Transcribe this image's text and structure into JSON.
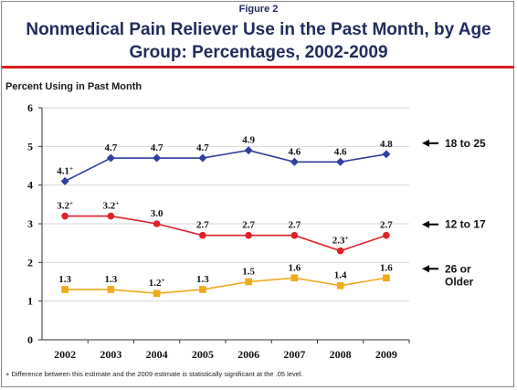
{
  "figure_label": "Figure 2",
  "title": "Nonmedical Pain Reliever Use in the Past Month, by Age Group: Percentages, 2002-2009",
  "footnote": "+ Difference between this estimate and the 2009 estimate is statistically significant at the .05 level.",
  "chart_data": {
    "type": "line",
    "x": [
      "2002",
      "2003",
      "2004",
      "2005",
      "2006",
      "2007",
      "2008",
      "2009"
    ],
    "ylabel": "Percent Using in Past Month",
    "ylim": [
      0,
      6
    ],
    "yticks": [
      "0",
      "1",
      "2",
      "3",
      "4",
      "5",
      "6"
    ],
    "grid": "horizontal",
    "legend": "right-end labels with arrows",
    "series": [
      {
        "name": "18 to 25",
        "legend_lines": [
          "18 to 25"
        ],
        "color": "#2e3f9e",
        "marker": "diamond",
        "values": [
          4.1,
          4.7,
          4.7,
          4.7,
          4.9,
          4.6,
          4.6,
          4.8
        ],
        "labels": [
          "4.1+",
          "4.7",
          "4.7",
          "4.7",
          "4.9",
          "4.6",
          "4.6",
          "4.8"
        ]
      },
      {
        "name": "12 to 17",
        "legend_lines": [
          "12 to 17"
        ],
        "color": "#e0202a",
        "marker": "circle",
        "values": [
          3.2,
          3.2,
          3.0,
          2.7,
          2.7,
          2.7,
          2.3,
          2.7
        ],
        "labels": [
          "3.2+",
          "3.2+",
          "3.0",
          "2.7",
          "2.7",
          "2.7",
          "2.3+",
          "2.7"
        ]
      },
      {
        "name": "26 or Older",
        "legend_lines": [
          "26 or",
          "Older"
        ],
        "color": "#f0a818",
        "marker": "square",
        "values": [
          1.3,
          1.3,
          1.2,
          1.3,
          1.5,
          1.6,
          1.4,
          1.6
        ],
        "labels": [
          "1.3",
          "1.3",
          "1.2+",
          "1.3",
          "1.5",
          "1.6",
          "1.4",
          "1.6"
        ]
      }
    ]
  }
}
